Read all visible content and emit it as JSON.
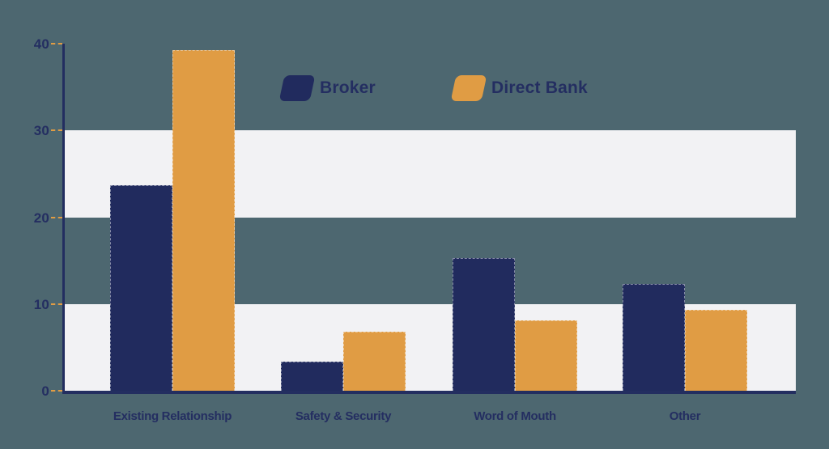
{
  "chart_data": {
    "type": "bar",
    "title": "",
    "categories": [
      "Existing Relationship",
      "Safety & Security",
      "Word of Mouth",
      "Other"
    ],
    "series": [
      {
        "name": "Broker",
        "color_key": "broker",
        "values": [
          23.7,
          3.4,
          15.3,
          12.3
        ]
      },
      {
        "name": "Direct Bank",
        "color_key": "direct_bank",
        "values": [
          39.3,
          6.8,
          8.1,
          9.3
        ]
      }
    ],
    "y_ticks": [
      0,
      10,
      20,
      30,
      40
    ],
    "ylim": [
      0,
      40
    ],
    "xlabel": "",
    "ylabel": "",
    "grid": "alternating-horizontal-bands",
    "band_ranges": [
      [
        0,
        10
      ],
      [
        20,
        30
      ]
    ],
    "legend": {
      "position": "top-center",
      "items": [
        "Broker",
        "Direct Bank"
      ]
    }
  },
  "colors": {
    "background": "#4d6770",
    "broker": "#212b5e",
    "direct_bank": "#e09c44",
    "band": "#f2f2f4",
    "axis": "#232e60",
    "tick_dash": "#e09c44",
    "text": "#242e61"
  }
}
